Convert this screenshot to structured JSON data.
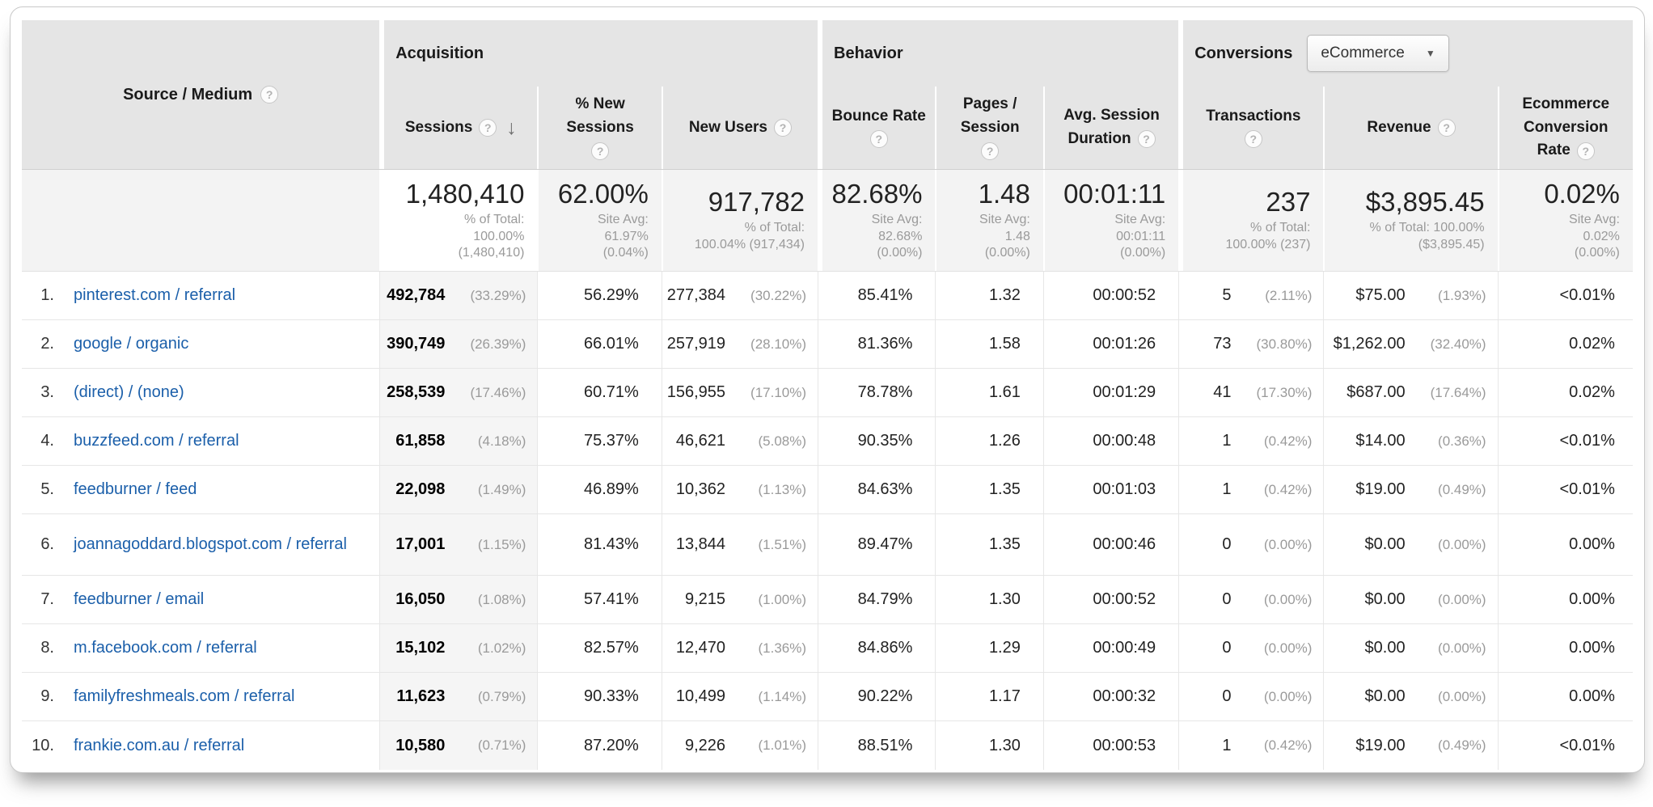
{
  "colors": {
    "link_blue": "#1b5faa",
    "header_bg": "#e5e5e5",
    "totals_bg": "#f3f3f3",
    "sorted_column_bg": "#f5f5f5",
    "muted_text": "#999999"
  },
  "icons": {
    "help": "?",
    "sort_desc": "↓",
    "dropdown_arrow": "▼"
  },
  "header": {
    "source_medium": "Source / Medium",
    "groups": {
      "acquisition": "Acquisition",
      "behavior": "Behavior",
      "conversions": "Conversions"
    },
    "conversions_dropdown_value": "eCommerce",
    "columns": {
      "sessions": "Sessions",
      "new_sessions_l1": "% New",
      "new_sessions_l2": "Sessions",
      "new_users": "New Users",
      "bounce_rate": "Bounce Rate",
      "pages_l1": "Pages /",
      "pages_l2": "Session",
      "duration_l1": "Avg. Session",
      "duration_l2": "Duration",
      "transactions": "Transactions",
      "revenue": "Revenue",
      "ecr_l1": "Ecommerce",
      "ecr_l2": "Conversion",
      "ecr_l3": "Rate"
    }
  },
  "totals": {
    "sessions": {
      "value": "1,480,410",
      "sub": "% of Total:\n100.00%\n(1,480,410)"
    },
    "new_sessions": {
      "value": "62.00%",
      "sub": "Site Avg:\n61.97%\n(0.04%)"
    },
    "new_users": {
      "value": "917,782",
      "sub": "% of Total:\n100.04% (917,434)"
    },
    "bounce_rate": {
      "value": "82.68%",
      "sub": "Site Avg:\n82.68%\n(0.00%)"
    },
    "pages_per_session": {
      "value": "1.48",
      "sub": "Site Avg:\n1.48\n(0.00%)"
    },
    "avg_session_duration": {
      "value": "00:01:11",
      "sub": "Site Avg:\n00:01:11\n(0.00%)"
    },
    "transactions": {
      "value": "237",
      "sub": "% of Total:\n100.00% (237)"
    },
    "revenue": {
      "value": "$3,895.45",
      "sub": "% of Total: 100.00%\n($3,895.45)"
    },
    "ecommerce_conversion_rate": {
      "value": "0.02%",
      "sub": "Site Avg:\n0.02%\n(0.00%)"
    }
  },
  "rows": [
    {
      "index": "1.",
      "source": "pinterest.com / referral",
      "sessions": "492,784",
      "sessions_pct": "(33.29%)",
      "new_sessions": "56.29%",
      "new_users": "277,384",
      "new_users_pct": "(30.22%)",
      "bounce_rate": "85.41%",
      "pages": "1.32",
      "duration": "00:00:52",
      "transactions": "5",
      "transactions_pct": "(2.11%)",
      "revenue": "$75.00",
      "revenue_pct": "(1.93%)",
      "ecr": "<0.01%"
    },
    {
      "index": "2.",
      "source": "google / organic",
      "sessions": "390,749",
      "sessions_pct": "(26.39%)",
      "new_sessions": "66.01%",
      "new_users": "257,919",
      "new_users_pct": "(28.10%)",
      "bounce_rate": "81.36%",
      "pages": "1.58",
      "duration": "00:01:26",
      "transactions": "73",
      "transactions_pct": "(30.80%)",
      "revenue": "$1,262.00",
      "revenue_pct": "(32.40%)",
      "ecr": "0.02%"
    },
    {
      "index": "3.",
      "source": "(direct) / (none)",
      "sessions": "258,539",
      "sessions_pct": "(17.46%)",
      "new_sessions": "60.71%",
      "new_users": "156,955",
      "new_users_pct": "(17.10%)",
      "bounce_rate": "78.78%",
      "pages": "1.61",
      "duration": "00:01:29",
      "transactions": "41",
      "transactions_pct": "(17.30%)",
      "revenue": "$687.00",
      "revenue_pct": "(17.64%)",
      "ecr": "0.02%"
    },
    {
      "index": "4.",
      "source": "buzzfeed.com / referral",
      "sessions": "61,858",
      "sessions_pct": "(4.18%)",
      "new_sessions": "75.37%",
      "new_users": "46,621",
      "new_users_pct": "(5.08%)",
      "bounce_rate": "90.35%",
      "pages": "1.26",
      "duration": "00:00:48",
      "transactions": "1",
      "transactions_pct": "(0.42%)",
      "revenue": "$14.00",
      "revenue_pct": "(0.36%)",
      "ecr": "<0.01%"
    },
    {
      "index": "5.",
      "source": "feedburner / feed",
      "sessions": "22,098",
      "sessions_pct": "(1.49%)",
      "new_sessions": "46.89%",
      "new_users": "10,362",
      "new_users_pct": "(1.13%)",
      "bounce_rate": "84.63%",
      "pages": "1.35",
      "duration": "00:01:03",
      "transactions": "1",
      "transactions_pct": "(0.42%)",
      "revenue": "$19.00",
      "revenue_pct": "(0.49%)",
      "ecr": "<0.01%"
    },
    {
      "index": "6.",
      "source": "joannagoddard.blogspot.com / referral",
      "sessions": "17,001",
      "sessions_pct": "(1.15%)",
      "new_sessions": "81.43%",
      "new_users": "13,844",
      "new_users_pct": "(1.51%)",
      "bounce_rate": "89.47%",
      "pages": "1.35",
      "duration": "00:00:46",
      "transactions": "0",
      "transactions_pct": "(0.00%)",
      "revenue": "$0.00",
      "revenue_pct": "(0.00%)",
      "ecr": "0.00%"
    },
    {
      "index": "7.",
      "source": "feedburner / email",
      "sessions": "16,050",
      "sessions_pct": "(1.08%)",
      "new_sessions": "57.41%",
      "new_users": "9,215",
      "new_users_pct": "(1.00%)",
      "bounce_rate": "84.79%",
      "pages": "1.30",
      "duration": "00:00:52",
      "transactions": "0",
      "transactions_pct": "(0.00%)",
      "revenue": "$0.00",
      "revenue_pct": "(0.00%)",
      "ecr": "0.00%"
    },
    {
      "index": "8.",
      "source": "m.facebook.com / referral",
      "sessions": "15,102",
      "sessions_pct": "(1.02%)",
      "new_sessions": "82.57%",
      "new_users": "12,470",
      "new_users_pct": "(1.36%)",
      "bounce_rate": "84.86%",
      "pages": "1.29",
      "duration": "00:00:49",
      "transactions": "0",
      "transactions_pct": "(0.00%)",
      "revenue": "$0.00",
      "revenue_pct": "(0.00%)",
      "ecr": "0.00%"
    },
    {
      "index": "9.",
      "source": "familyfreshmeals.com / referral",
      "sessions": "11,623",
      "sessions_pct": "(0.79%)",
      "new_sessions": "90.33%",
      "new_users": "10,499",
      "new_users_pct": "(1.14%)",
      "bounce_rate": "90.22%",
      "pages": "1.17",
      "duration": "00:00:32",
      "transactions": "0",
      "transactions_pct": "(0.00%)",
      "revenue": "$0.00",
      "revenue_pct": "(0.00%)",
      "ecr": "0.00%"
    },
    {
      "index": "10.",
      "source": "frankie.com.au / referral",
      "sessions": "10,580",
      "sessions_pct": "(0.71%)",
      "new_sessions": "87.20%",
      "new_users": "9,226",
      "new_users_pct": "(1.01%)",
      "bounce_rate": "88.51%",
      "pages": "1.30",
      "duration": "00:00:53",
      "transactions": "1",
      "transactions_pct": "(0.42%)",
      "revenue": "$19.00",
      "revenue_pct": "(0.49%)",
      "ecr": "<0.01%"
    }
  ]
}
